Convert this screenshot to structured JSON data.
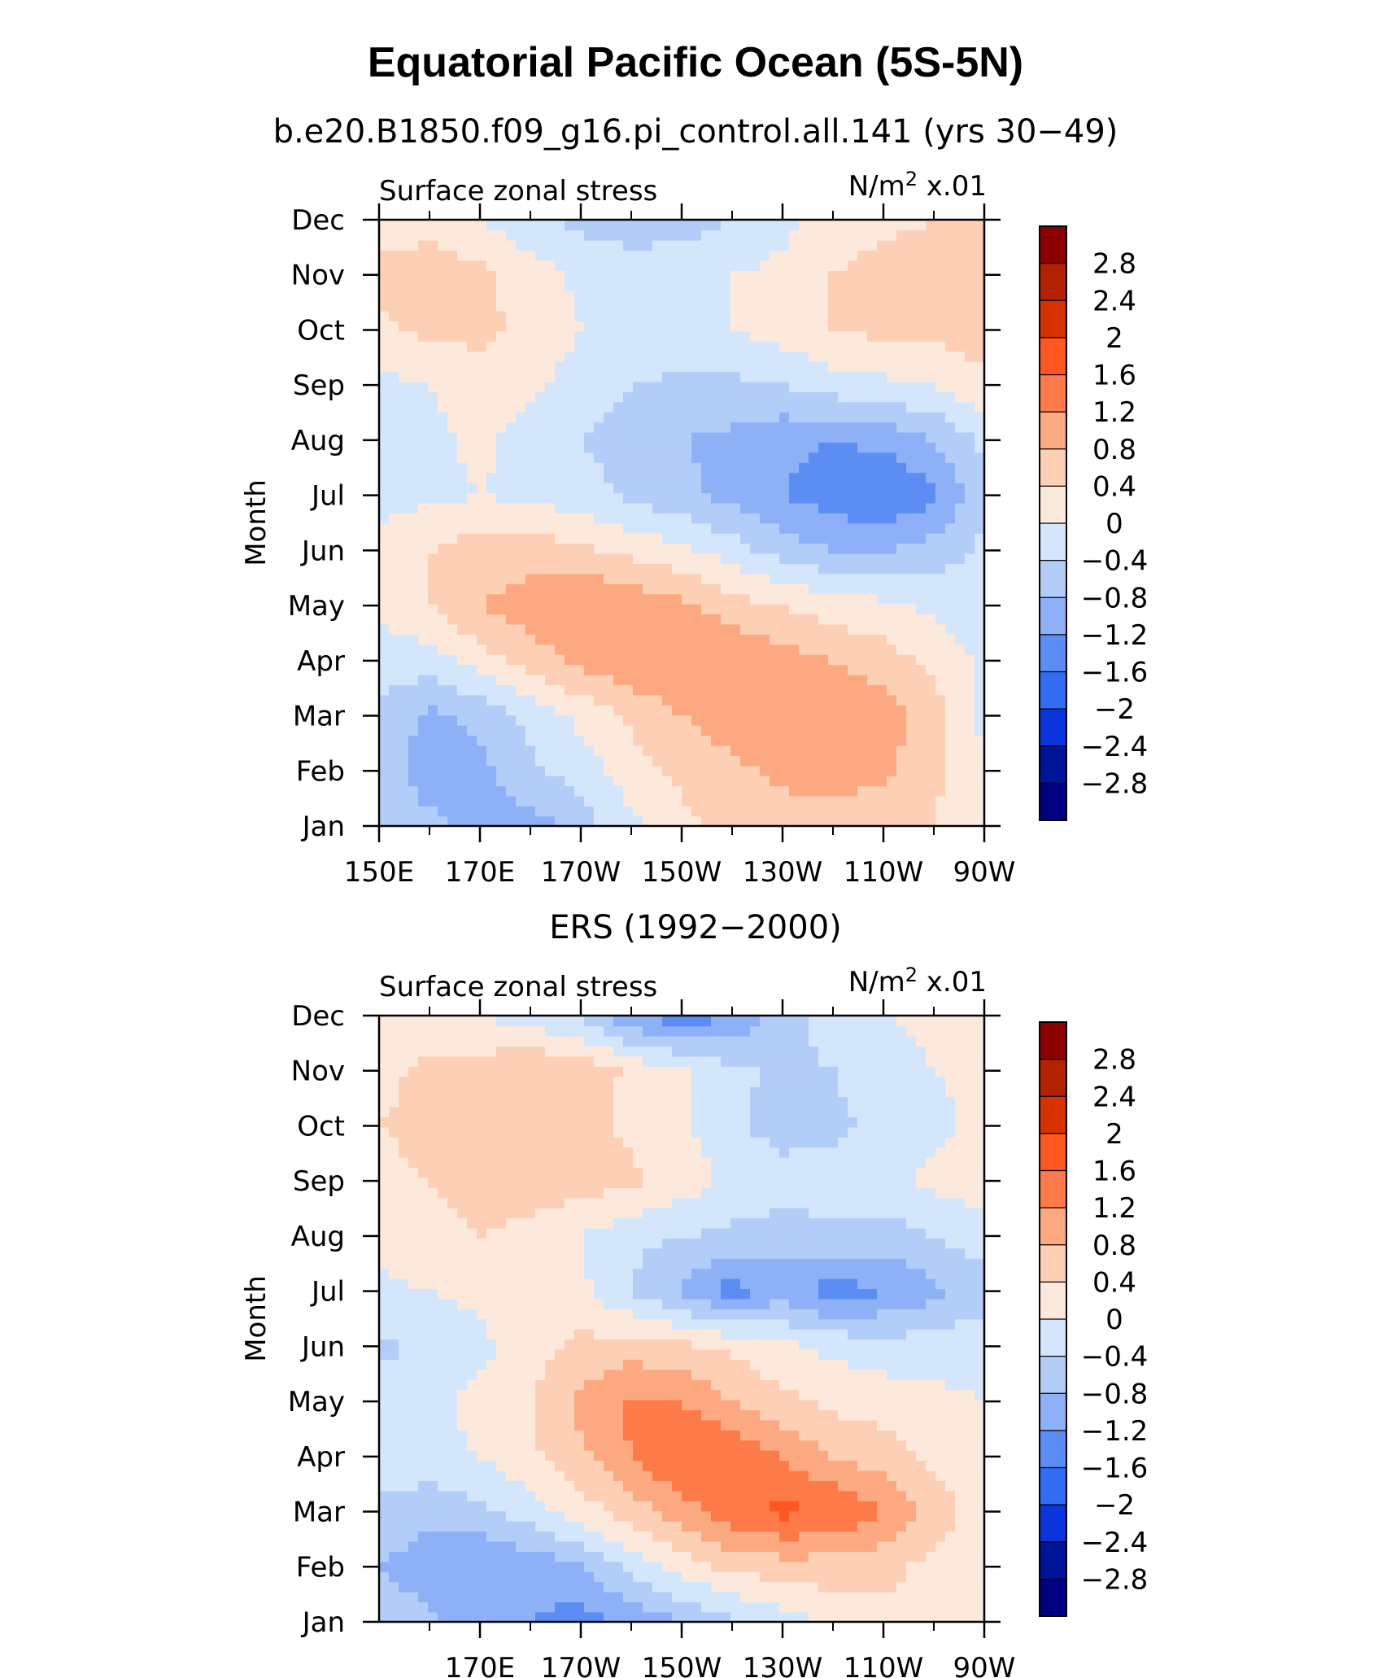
{
  "title": "Equatorial Pacific Ocean (5S-5N)",
  "contour_levels": [
    -2.8,
    -2.4,
    -2,
    -1.6,
    -1.2,
    -0.8,
    -0.4,
    0,
    0.4,
    0.8,
    1.2,
    1.6,
    2,
    2.4,
    2.8
  ],
  "colorbar_labels": [
    "2.8",
    "2.4",
    "2",
    "1.6",
    "1.2",
    "0.8",
    "0.4",
    "0",
    "−0.4",
    "−0.8",
    "−1.2",
    "−1.6",
    "−2",
    "−2.4",
    "−2.8"
  ],
  "colorbar_colors": [
    "#8b0000",
    "#b22200",
    "#d83200",
    "#ff5722",
    "#fc7b48",
    "#fca981",
    "#fdcfb4",
    "#fde9dc",
    "#d4e6fb",
    "#b3cdf9",
    "#8eb0f7",
    "#5b8df4",
    "#316cf2",
    "#0b34dc",
    "#001499",
    "#000080"
  ],
  "chart_data": [
    {
      "type": "heatmap",
      "subtitle": "b.e20.B1850.f09_g16.pi_control.all.141 (yrs 30−49)",
      "left_label": "Surface zonal stress",
      "right_label": "N/m",
      "right_label_sup": "2",
      "right_label_scale": " x.01",
      "ylabel": "Month",
      "yticks": [
        "Jan",
        "Feb",
        "Mar",
        "Apr",
        "May",
        "Jun",
        "Jul",
        "Aug",
        "Sep",
        "Oct",
        "Nov",
        "Dec"
      ],
      "xticks": [
        "150E",
        "170E",
        "170W",
        "150W",
        "130W",
        "110W",
        "90W"
      ],
      "xlim": [
        150,
        270
      ],
      "ylim": [
        1,
        12
      ],
      "x": [
        150,
        160,
        170,
        180,
        190,
        200,
        210,
        220,
        230,
        240,
        250,
        260,
        270
      ],
      "y": [
        1,
        2,
        3,
        4,
        5,
        6,
        7,
        8,
        9,
        10,
        11,
        12
      ],
      "values": [
        [
          -0.6,
          -0.7,
          -0.9,
          -1.0,
          -0.6,
          -0.1,
          0.3,
          0.5,
          0.6,
          0.6,
          0.5,
          0.4,
          0.0
        ],
        [
          -0.6,
          -1.0,
          -0.9,
          -0.5,
          -0.2,
          0.2,
          0.5,
          0.7,
          0.9,
          1.0,
          0.9,
          0.5,
          0.0
        ],
        [
          -0.5,
          -0.9,
          -0.7,
          -0.3,
          0.1,
          0.5,
          0.8,
          1.0,
          1.1,
          1.1,
          1.0,
          0.6,
          -0.1
        ],
        [
          -0.2,
          -0.2,
          0.2,
          0.6,
          0.9,
          1.1,
          1.2,
          1.1,
          1.0,
          0.8,
          0.6,
          0.3,
          -0.1
        ],
        [
          0.1,
          0.4,
          0.8,
          1.0,
          1.2,
          1.1,
          0.9,
          0.6,
          0.4,
          0.2,
          0.1,
          -0.1,
          -0.2
        ],
        [
          0.1,
          0.4,
          0.6,
          0.6,
          0.5,
          0.3,
          0.1,
          -0.2,
          -0.6,
          -0.8,
          -0.8,
          -0.6,
          -0.3
        ],
        [
          -0.1,
          -0.1,
          0.0,
          -0.1,
          -0.2,
          -0.5,
          -0.7,
          -0.9,
          -1.2,
          -1.4,
          -1.6,
          -1.3,
          -0.5
        ],
        [
          -0.2,
          -0.1,
          0.1,
          -0.2,
          -0.4,
          -0.6,
          -0.8,
          -0.9,
          -1.1,
          -1.2,
          -1.1,
          -0.8,
          -0.3
        ],
        [
          -0.1,
          0.0,
          0.2,
          0.1,
          -0.2,
          -0.4,
          -0.5,
          -0.5,
          -0.4,
          -0.2,
          -0.1,
          0.0,
          0.3
        ],
        [
          0.3,
          0.5,
          0.5,
          0.3,
          0.0,
          -0.1,
          -0.1,
          0.0,
          0.2,
          0.4,
          0.5,
          0.5,
          0.6
        ],
        [
          0.5,
          0.7,
          0.5,
          0.2,
          -0.1,
          -0.2,
          -0.1,
          0.0,
          0.1,
          0.4,
          0.6,
          0.6,
          0.6
        ],
        [
          0.2,
          0.2,
          0.0,
          -0.3,
          -0.5,
          -0.6,
          -0.6,
          -0.4,
          -0.1,
          0.1,
          0.3,
          0.4,
          0.4
        ]
      ]
    },
    {
      "type": "heatmap",
      "subtitle": "ERS (1992−2000)",
      "left_label": "Surface zonal stress",
      "right_label": "N/m",
      "right_label_sup": "2",
      "right_label_scale": " x.01",
      "ylabel": "Month",
      "yticks": [
        "Jan",
        "Feb",
        "Mar",
        "Apr",
        "May",
        "Jun",
        "Jul",
        "Aug",
        "Sep",
        "Oct",
        "Nov",
        "Dec"
      ],
      "xticks": [
        "170E",
        "170W",
        "150W",
        "130W",
        "110W",
        "90W"
      ],
      "xlim": [
        150,
        270
      ],
      "ylim": [
        1,
        12
      ],
      "x": [
        150,
        160,
        170,
        180,
        190,
        200,
        210,
        220,
        230,
        240,
        250,
        260,
        270
      ],
      "y": [
        1,
        2,
        3,
        4,
        5,
        6,
        7,
        8,
        9,
        10,
        11,
        12
      ],
      "values": [
        [
          -0.6,
          -0.7,
          -1.0,
          -1.2,
          -1.4,
          -1.1,
          -0.8,
          -0.5,
          -0.2,
          0.1,
          0.3,
          0.2,
          0.1
        ],
        [
          -0.8,
          -1.0,
          -1.2,
          -1.1,
          -0.8,
          -0.3,
          0.2,
          0.5,
          0.6,
          0.6,
          0.5,
          0.3,
          0.1
        ],
        [
          -0.5,
          -0.7,
          -0.5,
          -0.2,
          0.2,
          0.6,
          1.0,
          1.5,
          1.7,
          1.6,
          1.2,
          0.6,
          0.2
        ],
        [
          -0.2,
          -0.1,
          0.0,
          0.3,
          0.7,
          1.2,
          1.6,
          1.6,
          1.2,
          0.8,
          0.6,
          0.3,
          0.1
        ],
        [
          -0.2,
          -0.1,
          0.1,
          0.4,
          0.9,
          1.3,
          1.2,
          0.8,
          0.5,
          0.3,
          0.2,
          0.1,
          0.0
        ],
        [
          -0.5,
          -0.3,
          -0.1,
          0.2,
          0.5,
          0.6,
          0.5,
          0.3,
          0.1,
          -0.1,
          -0.2,
          -0.2,
          -0.1
        ],
        [
          -0.1,
          0.0,
          0.1,
          0.2,
          0.1,
          -0.4,
          -0.9,
          -1.4,
          -1.0,
          -1.4,
          -1.2,
          -0.9,
          -0.6
        ],
        [
          0.1,
          0.3,
          0.4,
          0.3,
          0.0,
          -0.3,
          -0.4,
          -0.5,
          -0.6,
          -0.5,
          -0.6,
          -0.4,
          -0.2
        ],
        [
          0.3,
          0.4,
          0.5,
          0.6,
          0.6,
          0.5,
          0.2,
          -0.1,
          -0.2,
          -0.2,
          -0.1,
          0.1,
          0.2
        ],
        [
          0.4,
          0.5,
          0.5,
          0.6,
          0.6,
          0.3,
          0.1,
          -0.3,
          -0.6,
          -0.5,
          -0.3,
          -0.1,
          0.1
        ],
        [
          0.3,
          0.5,
          0.6,
          0.8,
          0.7,
          0.3,
          0.1,
          -0.3,
          -0.5,
          -0.4,
          -0.2,
          0.0,
          0.1
        ],
        [
          0.3,
          0.2,
          0.0,
          -0.2,
          -0.5,
          -1.1,
          -1.5,
          -1.2,
          -0.6,
          -0.2,
          0.0,
          0.1,
          0.1
        ]
      ]
    }
  ]
}
